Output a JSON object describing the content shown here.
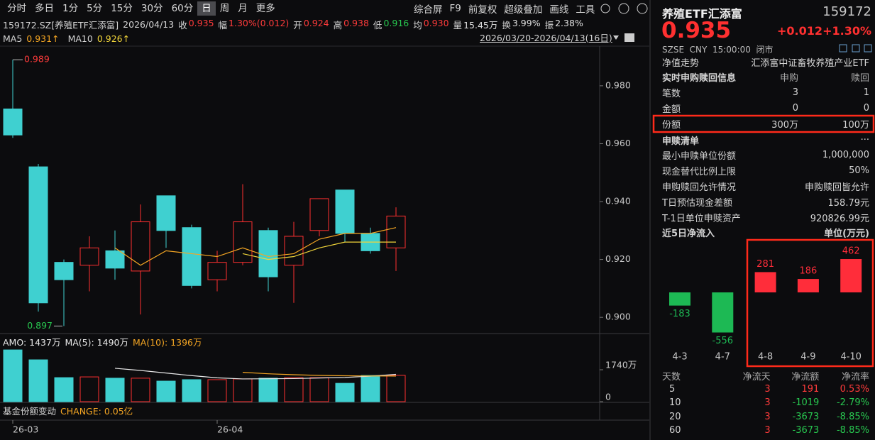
{
  "toolbar": {
    "periods": [
      "分时",
      "多日",
      "1分",
      "5分",
      "15分",
      "30分",
      "60分",
      "日",
      "周",
      "月",
      "更多"
    ],
    "tools": [
      "综合屏",
      "F9",
      "前复权",
      "超级叠加",
      "画线",
      "工具"
    ]
  },
  "info": {
    "symbol": "159172.SZ[养殖ETF汇添富]",
    "date": "2026/04/13",
    "fields": [
      {
        "label": "收",
        "value": "0.935",
        "color": "#ff3b3b"
      },
      {
        "label": "幅",
        "value": "1.30%(0.012)",
        "color": "#ff3b3b"
      },
      {
        "label": "开",
        "value": "0.924",
        "color": "#ff3b3b"
      },
      {
        "label": "高",
        "value": "0.938",
        "color": "#ff3b3b"
      },
      {
        "label": "低",
        "value": "0.916",
        "color": "#28c850"
      },
      {
        "label": "均",
        "value": "0.930",
        "color": "#ff3b3b"
      },
      {
        "label": "量",
        "value": "15.45万",
        "color": "#e0e0e0"
      },
      {
        "label": "换",
        "value": "3.99%",
        "color": "#e0e0e0"
      },
      {
        "label": "振",
        "value": "2.38%",
        "color": "#e0e0e0"
      }
    ]
  },
  "ma_legend": [
    {
      "label": "MA5",
      "value": "0.931↑",
      "color": "#f5a623"
    },
    {
      "label": "MA10",
      "value": "0.926↑",
      "color": "#f0d43a"
    }
  ],
  "range": "2026/03/20-2026/04/13(16日)",
  "volume_legend": [
    {
      "text": "AMO: 1437万",
      "color": "#e8e8e8"
    },
    {
      "text": "MA(5): 1490万",
      "color": "#e8e8e8"
    },
    {
      "text": "MA(10): 1396万",
      "color": "#f5a623"
    }
  ],
  "share_change": {
    "label": "基金份额变动",
    "value": "CHANGE: 0.05亿"
  },
  "panel": {
    "name": "养殖ETF汇添富",
    "code": "159172",
    "price": "0.935",
    "change": "+0.012",
    "change_pct": "+1.30%",
    "meta": "SZSE  CNY  15:00:00  闭市",
    "nav": [
      "净值走势",
      "汇添富中证畜牧养殖产业ETF"
    ],
    "realtime": {
      "header": [
        "实时申购赎回信息",
        "申购",
        "赎回"
      ],
      "rows": [
        [
          "笔数",
          "3",
          "1"
        ],
        [
          "金额",
          "0",
          "0"
        ],
        [
          "份额",
          "300万",
          "100万"
        ]
      ]
    },
    "list": {
      "title": "申赎清单",
      "more": "···",
      "rows": [
        [
          "最小申赎单位份额",
          "1,000,000"
        ],
        [
          "现金替代比例上限",
          "50%"
        ],
        [
          "申购赎回允许情况",
          "申购赎回皆允许"
        ],
        [
          "T日预估现金差额",
          "158.79元"
        ],
        [
          "T-1日单位申赎资产",
          "920826.99元"
        ]
      ]
    },
    "inflow_title": "近5日净流入",
    "inflow_unit": "单位(万元)",
    "stats": {
      "header": [
        "天数",
        "净流天",
        "净流额",
        "净流率"
      ],
      "rows": [
        [
          "5",
          "3",
          "191",
          "0.53%"
        ],
        [
          "10",
          "3",
          "-1019",
          "-2.79%"
        ],
        [
          "20",
          "3",
          "-3673",
          "-8.85%"
        ],
        [
          "60",
          "3",
          "-3673",
          "-8.85%"
        ]
      ]
    }
  },
  "chart_data": [
    {
      "type": "candlestick",
      "categories": [
        null,
        null,
        null,
        null,
        null,
        null,
        null,
        null,
        null,
        null,
        null,
        null,
        null,
        null,
        null,
        null
      ],
      "open": [
        0.972,
        0.952,
        0.919,
        0.918,
        0.923,
        0.916,
        0.942,
        0.931,
        0.913,
        0.919,
        0.93,
        0.918,
        0.93,
        0.944,
        0.929,
        0.924
      ],
      "high": [
        0.989,
        0.953,
        0.92,
        0.928,
        0.93,
        0.939,
        0.942,
        0.932,
        0.923,
        0.946,
        0.931,
        0.933,
        0.941,
        0.944,
        0.931,
        0.938
      ],
      "low": [
        0.962,
        0.902,
        0.897,
        0.909,
        0.913,
        0.901,
        0.924,
        0.91,
        0.909,
        0.918,
        0.909,
        0.905,
        0.928,
        0.926,
        0.922,
        0.916
      ],
      "close": [
        0.963,
        0.905,
        0.913,
        0.924,
        0.917,
        0.933,
        0.93,
        0.911,
        0.919,
        0.933,
        0.914,
        0.928,
        0.941,
        0.929,
        0.923,
        0.935
      ],
      "series": [
        {
          "name": "MA5",
          "color": "#f5a623",
          "values": [
            null,
            null,
            null,
            null,
            0.924,
            0.918,
            0.923,
            0.922,
            0.921,
            0.924,
            0.921,
            0.922,
            0.927,
            0.929,
            0.929,
            0.931
          ]
        },
        {
          "name": "MA10",
          "color": "#f0d43a",
          "values": [
            null,
            null,
            null,
            null,
            null,
            null,
            null,
            null,
            null,
            0.922,
            0.92,
            0.921,
            0.924,
            0.926,
            0.926,
            0.926
          ]
        }
      ],
      "up_color": "#ff3030",
      "down_color": "#3fd0d0",
      "ylim": [
        0.8944,
        0.9937
      ],
      "yticks": [
        {
          "value": 0.98,
          "label": "0.980"
        },
        {
          "value": 0.96,
          "label": "0.960"
        },
        {
          "value": 0.94,
          "label": "0.940"
        },
        {
          "value": 0.92,
          "label": "0.920"
        },
        {
          "value": 0.9,
          "label": "0.900"
        }
      ],
      "xticks": [
        {
          "value": 0,
          "label": "26-03"
        },
        {
          "value": 8,
          "label": "26-04"
        }
      ]
    },
    {
      "type": "bar",
      "values": [
        2820,
        2280,
        1310,
        1350,
        1280,
        1280,
        1120,
        1200,
        1200,
        1240,
        1280,
        1310,
        1310,
        1000,
        1430,
        1437
      ],
      "series": [
        {
          "name": "MA(5)",
          "color": "#e8e8e8",
          "values": [
            null,
            null,
            null,
            null,
            1820,
            1700,
            1560,
            1420,
            1300,
            1240,
            1250,
            1260,
            1290,
            1320,
            1390,
            1490
          ]
        },
        {
          "name": "MA(10)",
          "color": "#f5a623",
          "values": [
            null,
            null,
            null,
            null,
            null,
            null,
            null,
            null,
            null,
            1600,
            1520,
            1470,
            1430,
            1410,
            1400,
            1396
          ]
        }
      ],
      "ylim": [
        0,
        3016
      ],
      "yticks": [
        {
          "value": 1740,
          "label": "1740万"
        },
        0
      ]
    },
    {
      "type": "bar",
      "categories": [
        "4-3",
        "4-7",
        "4-8",
        "4-9",
        "4-10"
      ],
      "values": [
        -183,
        -556,
        281,
        186,
        462
      ],
      "up_color": "#ff2d3a",
      "down_color": "#1db954",
      "ylim": [
        -669,
        659
      ]
    }
  ]
}
